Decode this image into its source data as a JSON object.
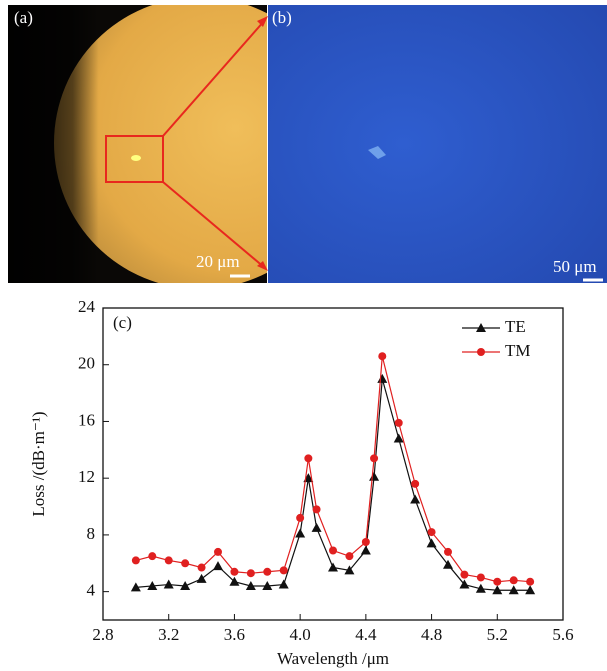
{
  "panels": [
    {
      "label": "(a)",
      "scale_bar": "20 μm"
    },
    {
      "label": "(b)",
      "scale_bar": "50 μm"
    }
  ],
  "chart_data": {
    "type": "line",
    "panel_label": "(c)",
    "x_label": "Wavelength /μm",
    "y_label": "Loss /(dB·m⁻¹)",
    "x": [
      3.0,
      3.1,
      3.2,
      3.3,
      3.4,
      3.5,
      3.6,
      3.7,
      3.8,
      3.9,
      4.0,
      4.05,
      4.1,
      4.2,
      4.3,
      4.4,
      4.45,
      4.5,
      4.6,
      4.7,
      4.8,
      4.9,
      5.0,
      5.1,
      5.2,
      5.3,
      5.4
    ],
    "series": [
      {
        "name": "TE",
        "color": "#111111",
        "marker": "triangle",
        "values": [
          4.3,
          4.4,
          4.5,
          4.4,
          4.9,
          5.8,
          4.7,
          4.4,
          4.4,
          4.5,
          8.1,
          12.0,
          8.5,
          5.7,
          5.5,
          6.9,
          12.1,
          19.0,
          14.8,
          10.5,
          7.4,
          5.9,
          4.5,
          4.2,
          4.1,
          4.1,
          4.1
        ]
      },
      {
        "name": "TM",
        "color": "#e02020",
        "marker": "circle",
        "values": [
          6.2,
          6.5,
          6.2,
          6.0,
          5.7,
          6.8,
          5.4,
          5.3,
          5.4,
          5.5,
          9.2,
          13.4,
          9.8,
          6.9,
          6.5,
          7.5,
          13.4,
          20.6,
          15.9,
          11.6,
          8.2,
          6.8,
          5.2,
          5.0,
          4.7,
          4.8,
          4.7
        ]
      }
    ],
    "xlim": [
      2.8,
      5.6
    ],
    "xticks": [
      2.8,
      3.2,
      3.6,
      {
        "value": 4,
        "label": "4.0"
      },
      4.4,
      4.8,
      5.2,
      5.6
    ],
    "ylim": [
      2,
      24
    ],
    "yticks": [
      4,
      8,
      12,
      16,
      20,
      24
    ],
    "legend": "upper-right"
  }
}
